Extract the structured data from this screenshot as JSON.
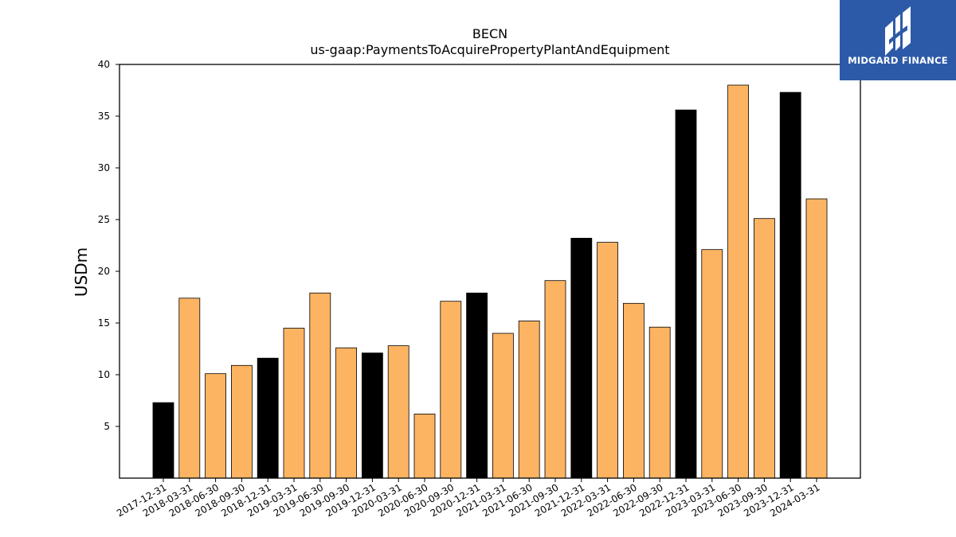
{
  "brand": {
    "name": "MIDGARD FINANCE",
    "bg_color": "#2d5aa8"
  },
  "chart_data": {
    "type": "bar",
    "title": "BECN",
    "subtitle": "us-gaap:PaymentsToAcquirePropertyPlantAndEquipment",
    "ylabel": "USDm",
    "xlabel": "",
    "ylim": [
      0,
      40
    ],
    "yticks": [
      5,
      10,
      15,
      20,
      25,
      30,
      35,
      40
    ],
    "grid": false,
    "colors": {
      "fiscal_year_end": "#000000",
      "quarter": "#fdb462"
    },
    "categories": [
      "2017-12-31",
      "2018-03-31",
      "2018-06-30",
      "2018-09-30",
      "2018-12-31",
      "2019-03-31",
      "2019-06-30",
      "2019-09-30",
      "2019-12-31",
      "2020-03-31",
      "2020-06-30",
      "2020-09-30",
      "2020-12-31",
      "2021-03-31",
      "2021-06-30",
      "2021-09-30",
      "2021-12-31",
      "2022-03-31",
      "2022-06-30",
      "2022-09-30",
      "2022-12-31",
      "2023-03-31",
      "2023-06-30",
      "2023-09-30",
      "2023-12-31",
      "2024-03-31"
    ],
    "values": [
      7.3,
      17.4,
      10.1,
      10.9,
      11.6,
      14.5,
      17.9,
      12.6,
      12.1,
      12.8,
      6.2,
      17.1,
      17.9,
      14.0,
      15.2,
      19.1,
      23.2,
      22.8,
      16.9,
      14.6,
      35.6,
      22.1,
      38.0,
      25.1,
      37.3,
      27.0
    ],
    "is_fiscal_year_end": [
      true,
      false,
      false,
      false,
      true,
      false,
      false,
      false,
      true,
      false,
      false,
      false,
      true,
      false,
      false,
      false,
      true,
      false,
      false,
      false,
      true,
      false,
      false,
      false,
      true,
      false
    ]
  }
}
